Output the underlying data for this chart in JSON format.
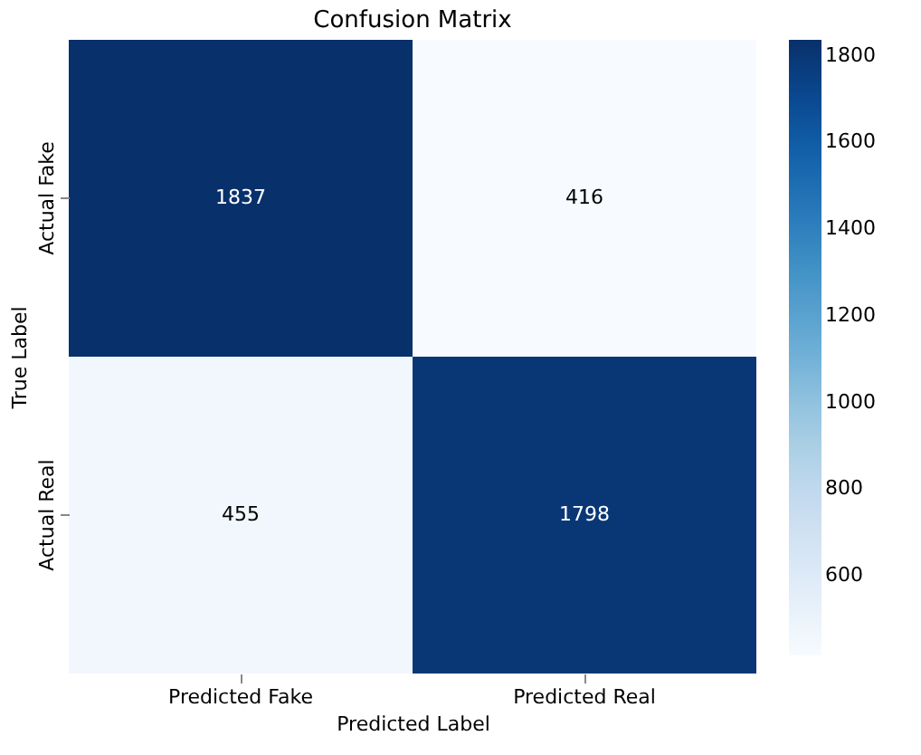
{
  "chart_data": {
    "type": "heatmap",
    "title": "Confusion Matrix",
    "xlabel": "Predicted Label",
    "ylabel": "True Label",
    "categories": [
      "Predicted Fake",
      "Predicted Real"
    ],
    "y_categories": [
      "Actual Fake",
      "Actual Real"
    ],
    "cells": [
      [
        1837,
        416
      ],
      [
        455,
        1798
      ]
    ],
    "clim": [
      416,
      1837
    ],
    "cticks": [
      600,
      800,
      1000,
      1200,
      1400,
      1600,
      1800
    ],
    "data_labels": true
  }
}
